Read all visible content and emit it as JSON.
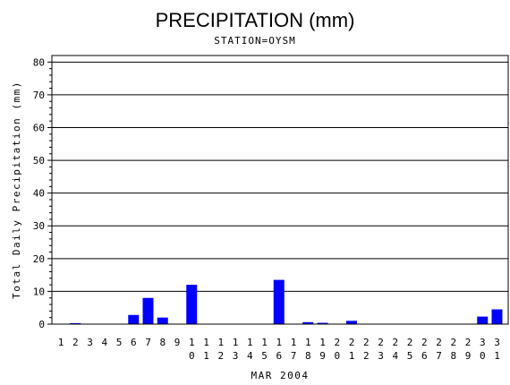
{
  "chart_data": {
    "type": "bar",
    "title": "PRECIPITATION (mm)",
    "subtitle": "STATION=OYSM",
    "xlabel": "MAR 2004",
    "ylabel": "Total Daily Precipitation (mm)",
    "ylim": [
      0,
      82
    ],
    "yticks": [
      0,
      10,
      20,
      30,
      40,
      50,
      60,
      70,
      80
    ],
    "grid": true,
    "categories": [
      "1",
      "2",
      "3",
      "4",
      "5",
      "6",
      "7",
      "8",
      "9",
      "10",
      "11",
      "12",
      "13",
      "14",
      "15",
      "16",
      "17",
      "18",
      "19",
      "20",
      "21",
      "22",
      "23",
      "24",
      "25",
      "26",
      "27",
      "28",
      "29",
      "30",
      "31"
    ],
    "values": [
      0,
      0.3,
      0,
      0,
      0,
      2.8,
      8.0,
      2.0,
      0,
      12.0,
      0,
      0,
      0,
      0,
      0,
      13.5,
      0,
      0.6,
      0.4,
      0,
      1.0,
      0,
      0,
      0,
      0,
      0,
      0,
      0,
      0,
      2.3,
      4.5
    ],
    "colors": {
      "bar": "#0000ff"
    }
  }
}
